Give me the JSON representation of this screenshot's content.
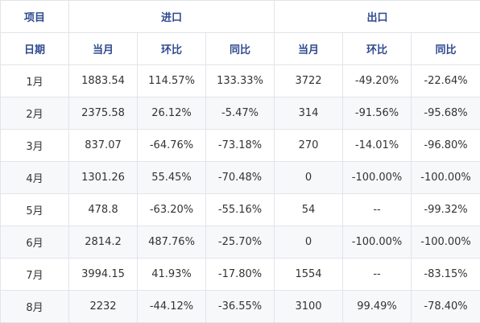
{
  "header": {
    "item": "项目",
    "import_group": "进口",
    "export_group": "出口"
  },
  "subheader": {
    "period": "日期",
    "import_current": "当月",
    "import_mom": "环比",
    "import_yoy": "同比",
    "export_current": "当月",
    "export_mom": "环比",
    "export_yoy": "同比"
  },
  "rows": [
    {
      "month": "1月",
      "imp": "1883.54",
      "imp_mom": "114.57%",
      "imp_yoy": "133.33%",
      "exp": "3722",
      "exp_mom": "-49.20%",
      "exp_yoy": "-22.64%"
    },
    {
      "month": "2月",
      "imp": "2375.58",
      "imp_mom": "26.12%",
      "imp_yoy": "-5.47%",
      "exp": "314",
      "exp_mom": "-91.56%",
      "exp_yoy": "-95.68%"
    },
    {
      "month": "3月",
      "imp": "837.07",
      "imp_mom": "-64.76%",
      "imp_yoy": "-73.18%",
      "exp": "270",
      "exp_mom": "-14.01%",
      "exp_yoy": "-96.80%"
    },
    {
      "month": "4月",
      "imp": "1301.26",
      "imp_mom": "55.45%",
      "imp_yoy": "-70.48%",
      "exp": "0",
      "exp_mom": "-100.00%",
      "exp_yoy": "-100.00%"
    },
    {
      "month": "5月",
      "imp": "478.8",
      "imp_mom": "-63.20%",
      "imp_yoy": "-55.16%",
      "exp": "54",
      "exp_mom": "--",
      "exp_yoy": "-99.32%"
    },
    {
      "month": "6月",
      "imp": "2814.2",
      "imp_mom": "487.76%",
      "imp_yoy": "-25.70%",
      "exp": "0",
      "exp_mom": "-100.00%",
      "exp_yoy": "-100.00%"
    },
    {
      "month": "7月",
      "imp": "3994.15",
      "imp_mom": "41.93%",
      "imp_yoy": "-17.80%",
      "exp": "1554",
      "exp_mom": "--",
      "exp_yoy": "-83.15%"
    },
    {
      "month": "8月",
      "imp": "2232",
      "imp_mom": "-44.12%",
      "imp_yoy": "-36.55%",
      "exp": "3100",
      "exp_mom": "99.49%",
      "exp_yoy": "-78.40%"
    }
  ],
  "colors": {
    "header_text": "#2f4a8f",
    "body_text": "#333333",
    "border": "#e1e4ea"
  }
}
